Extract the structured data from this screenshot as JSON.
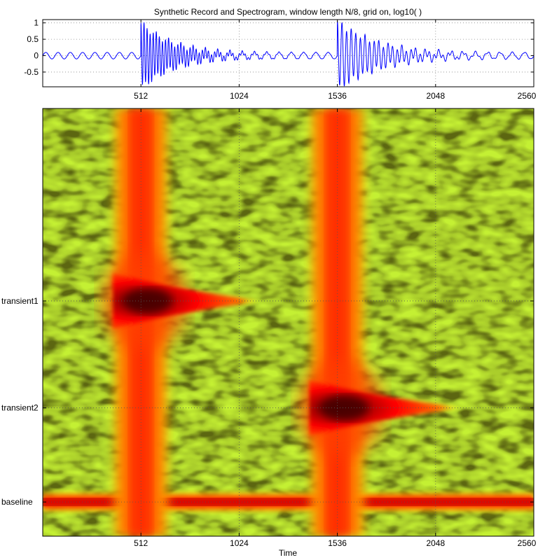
{
  "title": "Synthetic Record and Spectrogram, window length N/8, grid on, log10( )",
  "chart_data": [
    {
      "type": "line",
      "name": "synthetic-record",
      "xlim": [
        0,
        2560
      ],
      "ylim": [
        -0.95,
        1.1
      ],
      "x_ticks": [
        512,
        1024,
        1536,
        2048,
        2560
      ],
      "x_tick_labels": [
        "512",
        "1024",
        "1536",
        "2048",
        "2560"
      ],
      "y_ticks": [
        -0.5,
        0,
        0.5,
        1
      ],
      "y_tick_labels": [
        "-0.5",
        "0",
        "0.5",
        "1"
      ],
      "grid": true,
      "line_color": "#0000ff",
      "baseline": {
        "amplitude": 0.1,
        "period": 64
      },
      "transients": [
        {
          "onset": 512,
          "amplitude": 1.0,
          "period": 16,
          "decay": 180
        },
        {
          "onset": 1536,
          "amplitude": 1.05,
          "period": 24,
          "decay": 220
        }
      ]
    },
    {
      "type": "heatmap",
      "name": "spectrogram",
      "xlabel": "Time",
      "xlim": [
        0,
        2560
      ],
      "x_ticks": [
        512,
        1024,
        1536,
        2048,
        2560
      ],
      "x_tick_labels": [
        "512",
        "1024",
        "1536",
        "2048",
        "2560"
      ],
      "y_ticks": [
        {
          "label": "transient1",
          "value": 0.55
        },
        {
          "label": "transient2",
          "value": 0.3
        },
        {
          "label": "baseline",
          "value": 0.08
        }
      ],
      "grid": true,
      "scale": "log10",
      "colormap": [
        "#00ffff",
        "#ffff00",
        "#ff0000",
        "#800000"
      ],
      "features": [
        {
          "kind": "horizontal-band",
          "label": "baseline",
          "value": 0.08
        },
        {
          "kind": "vertical-burst",
          "time": 512
        },
        {
          "kind": "vertical-burst",
          "time": 1536
        },
        {
          "kind": "decaying-tone",
          "label": "transient1",
          "start": 512,
          "end": 1150,
          "value": 0.55
        },
        {
          "kind": "decaying-tone",
          "label": "transient2",
          "start": 1536,
          "end": 2200,
          "value": 0.3
        }
      ]
    }
  ]
}
